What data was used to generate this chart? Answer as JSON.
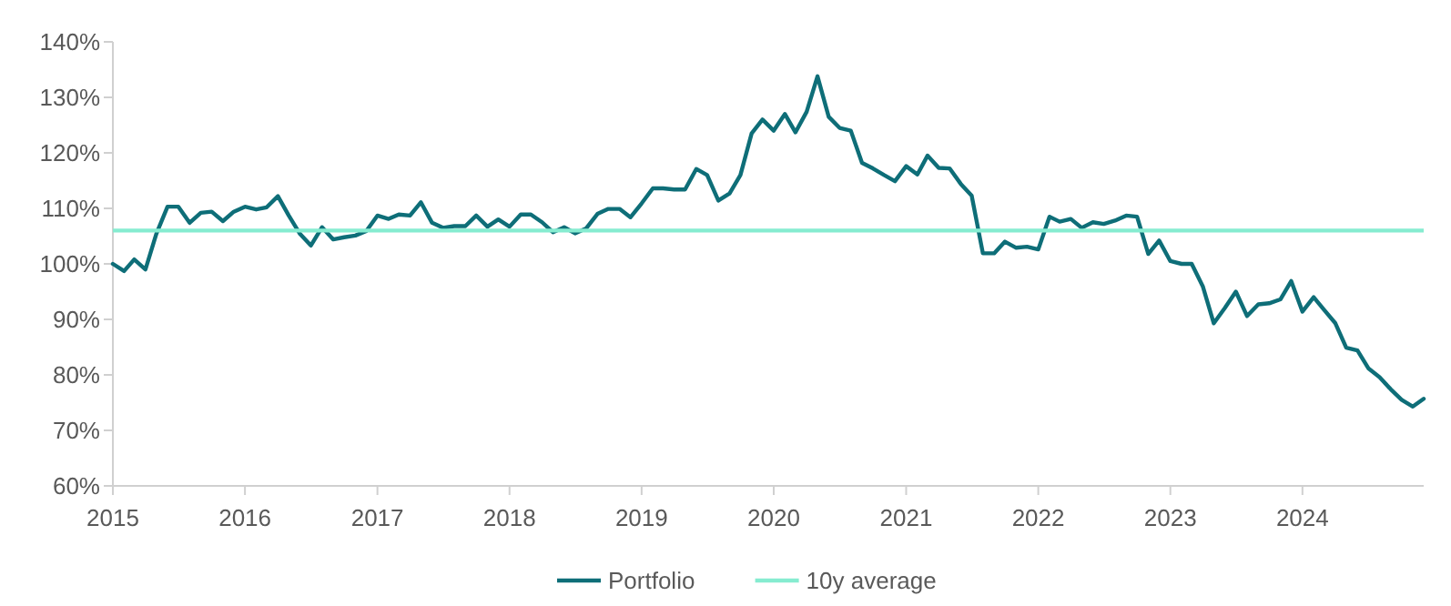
{
  "chart_data": {
    "type": "line",
    "x": [
      "2015-01",
      "2015-02",
      "2015-03",
      "2015-04",
      "2015-05",
      "2015-06",
      "2015-07",
      "2015-08",
      "2015-09",
      "2015-10",
      "2015-11",
      "2015-12",
      "2016-01",
      "2016-02",
      "2016-03",
      "2016-04",
      "2016-05",
      "2016-06",
      "2016-07",
      "2016-08",
      "2016-09",
      "2016-10",
      "2016-11",
      "2016-12",
      "2017-01",
      "2017-02",
      "2017-03",
      "2017-04",
      "2017-05",
      "2017-06",
      "2017-07",
      "2017-08",
      "2017-09",
      "2017-10",
      "2017-11",
      "2017-12",
      "2018-01",
      "2018-02",
      "2018-03",
      "2018-04",
      "2018-05",
      "2018-06",
      "2018-07",
      "2018-08",
      "2018-09",
      "2018-10",
      "2018-11",
      "2018-12",
      "2019-01",
      "2019-02",
      "2019-03",
      "2019-04",
      "2019-05",
      "2019-06",
      "2019-07",
      "2019-08",
      "2019-09",
      "2019-10",
      "2019-11",
      "2019-12",
      "2020-01",
      "2020-02",
      "2020-03",
      "2020-04",
      "2020-05",
      "2020-06",
      "2020-07",
      "2020-08",
      "2020-09",
      "2020-10",
      "2020-11",
      "2020-12",
      "2021-01",
      "2021-02",
      "2021-03",
      "2021-04",
      "2021-05",
      "2021-06",
      "2021-07",
      "2021-08",
      "2021-09",
      "2021-10",
      "2021-11",
      "2021-12",
      "2022-01",
      "2022-02",
      "2022-03",
      "2022-04",
      "2022-05",
      "2022-06",
      "2022-07",
      "2022-08",
      "2022-09",
      "2022-10",
      "2022-11",
      "2022-12",
      "2023-01",
      "2023-02",
      "2023-03",
      "2023-04",
      "2023-05",
      "2023-06",
      "2023-07",
      "2023-08",
      "2023-09",
      "2023-10",
      "2023-11",
      "2023-12",
      "2024-01",
      "2024-02",
      "2024-03",
      "2024-04",
      "2024-05",
      "2024-06",
      "2024-07",
      "2024-08",
      "2024-09",
      "2024-10",
      "2024-11",
      "2024-12"
    ],
    "series": [
      {
        "name": "Portfolio",
        "color": "#0e6e78",
        "values": [
          100,
          98.7,
          100.8,
          99,
          105.4,
          110.3,
          110.3,
          107.4,
          109.2,
          109.4,
          107.7,
          109.4,
          110.3,
          109.8,
          110.2,
          112.2,
          108.7,
          105.4,
          103.3,
          106.6,
          104.4,
          104.8,
          105.1,
          105.9,
          108.7,
          108.1,
          108.9,
          108.7,
          111.1,
          107.4,
          106.5,
          106.8,
          106.8,
          108.7,
          106.7,
          108,
          106.7,
          108.9,
          108.9,
          107.5,
          105.7,
          106.6,
          105.5,
          106.4,
          109,
          109.9,
          109.9,
          108.4,
          110.9,
          113.6,
          113.6,
          113.4,
          113.4,
          117.1,
          116,
          111.4,
          112.7,
          116,
          123.5,
          126,
          124,
          127,
          123.7,
          127.4,
          133.8,
          126.5,
          124.5,
          124,
          118.2,
          117.2,
          116,
          114.9,
          117.6,
          116.1,
          119.5,
          117.3,
          117.2,
          114.4,
          112.3,
          101.9,
          101.9,
          104,
          102.9,
          103.1,
          102.6,
          108.5,
          107.6,
          108.1,
          106.5,
          107.5,
          107.2,
          107.8,
          108.7,
          108.5,
          101.8,
          104.2,
          100.5,
          100,
          100,
          95.9,
          89.3,
          92.1,
          95,
          90.6,
          92.7,
          92.9,
          93.6,
          96.9,
          91.4,
          94,
          91.7,
          89.3,
          84.9,
          84.4,
          81.2,
          79.6,
          77.4,
          75.5,
          74.3,
          75.7
        ]
      }
    ],
    "xlim": [
      "2015-01",
      "2024-12"
    ],
    "xticks": [
      {
        "value": "2015",
        "label": "2015"
      },
      {
        "value": "2016",
        "label": "2016"
      },
      {
        "value": "2017",
        "label": "2017"
      },
      {
        "value": "2018",
        "label": "2018"
      },
      {
        "value": "2019",
        "label": "2019"
      },
      {
        "value": "2020",
        "label": "2020"
      },
      {
        "value": "2021",
        "label": "2021"
      },
      {
        "value": "2022",
        "label": "2022"
      },
      {
        "value": "2023",
        "label": "2023"
      },
      {
        "value": "2024",
        "label": "2024"
      }
    ],
    "ylim": [
      60,
      140
    ],
    "yticks": [
      {
        "value": 60,
        "label": "60%"
      },
      {
        "value": 70,
        "label": "70%"
      },
      {
        "value": 80,
        "label": "80%"
      },
      {
        "value": 90,
        "label": "90%"
      },
      {
        "value": 100,
        "label": "100%"
      },
      {
        "value": 110,
        "label": "110%"
      },
      {
        "value": 120,
        "label": "120%"
      },
      {
        "value": 130,
        "label": "130%"
      },
      {
        "value": 140,
        "label": "140%"
      }
    ],
    "ref_lines": [
      {
        "axis": "y",
        "value": 106,
        "label": "10y average",
        "color": "#86ecd0"
      }
    ],
    "grid": false,
    "legend": "bottom",
    "marker": "none",
    "line_style": "solid"
  }
}
